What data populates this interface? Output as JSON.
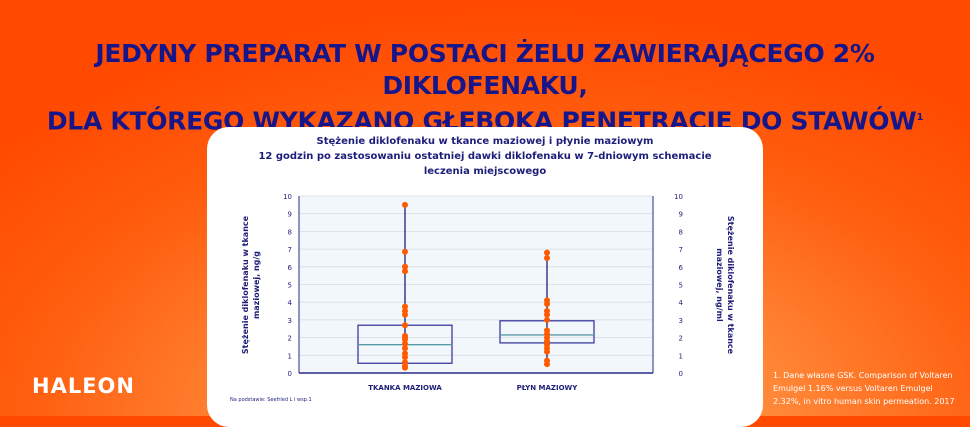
{
  "headline": {
    "line1": "JEDYNY PREPARAT W POSTACI ŻELU ZAWIERAJĄCEGO 2% DIKLOFENAKU,",
    "line2": "DLA KTÓREGO WYKAZANO GŁĘBOKĄ PENETRACJĘ DO STAWÓW",
    "sup": "1"
  },
  "logo": "HALEON",
  "footnote": "1. Dane własne GSK. Comparison of Voltaren Emulgel 1.16% versus Voltaren Emulgel 2.32%, in vitro human skin permeation. 2017",
  "source": "Na podstawie: Seefried L i wsp.1",
  "colors": {
    "accent": "#ff5a00",
    "navy": "#1e1e7a",
    "box": "#3b3b9e",
    "median": "#5a9aa8",
    "points": "#ff5a00"
  },
  "chart_data": {
    "type": "box",
    "title": "Stężenie diklofenaku w tkance maziowej i płynie maziowym",
    "subtitle": "12 godzin po zastosowaniu ostatniej dawki diklofenaku w 7-dniowym schemacie leczenia miejscowego",
    "ylabel": "Stężenie diklofenaku w tkance maziowej, ng/g",
    "y2label": "Stężenie diklofenaku w tkance maziowej, ng/ml",
    "ylim": [
      0,
      10
    ],
    "yticks": [
      0,
      1,
      2,
      3,
      4,
      5,
      6,
      7,
      8,
      9,
      10
    ],
    "grid": true,
    "categories": [
      "TKANKA MAZIOWA",
      "PŁYN MAZIOWY"
    ],
    "boxes": [
      {
        "min": 0.3,
        "q1": 0.55,
        "median": 1.6,
        "q3": 2.7,
        "max": 9.5,
        "points": [
          9.5,
          6.85,
          6.0,
          5.75,
          3.75,
          3.5,
          3.3,
          2.7,
          2.1,
          2.0,
          1.9,
          1.65,
          1.4,
          1.1,
          0.9,
          0.6,
          0.4,
          0.3
        ]
      },
      {
        "min": 0.5,
        "q1": 1.7,
        "median": 2.15,
        "q3": 2.95,
        "max": 6.8,
        "points": [
          6.8,
          6.5,
          4.1,
          3.9,
          3.5,
          3.3,
          3.0,
          2.4,
          2.2,
          2.0,
          1.8,
          1.6,
          1.4,
          1.2,
          0.7,
          0.5
        ]
      }
    ]
  }
}
